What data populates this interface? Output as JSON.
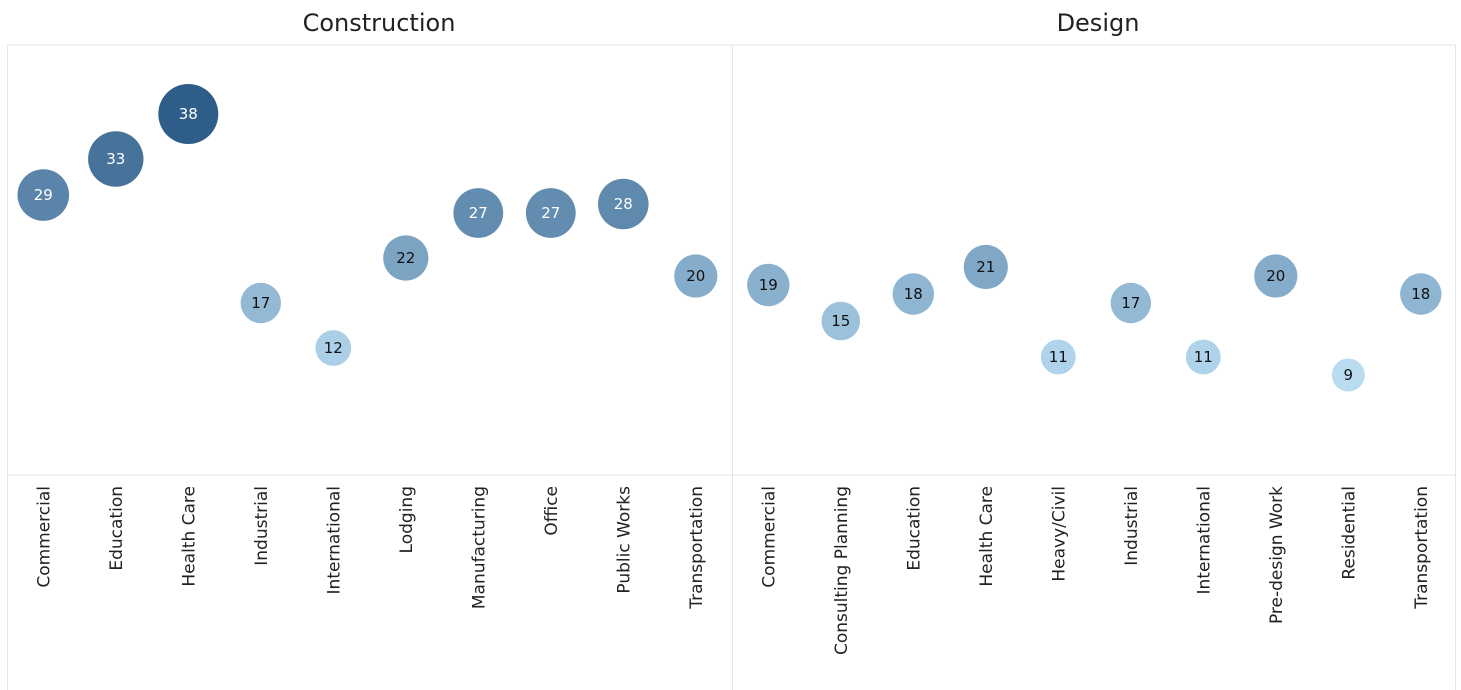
{
  "chart_data": {
    "type": "scatter",
    "encoding": "bubble",
    "color_scale": {
      "low": "#b9dcf1",
      "high": "#2f5d89"
    },
    "value_range": [
      9,
      38
    ],
    "grid": false,
    "panels": [
      {
        "title": "Construction",
        "categories": [
          "Commercial",
          "Education",
          "Health Care",
          "Industrial",
          "International",
          "Lodging",
          "Manufacturing",
          "Office",
          "Public Works",
          "Transportation"
        ],
        "values": [
          29,
          33,
          38,
          17,
          12,
          22,
          27,
          27,
          28,
          20
        ]
      },
      {
        "title": "Design",
        "categories": [
          "Commercial",
          "Consulting Planning",
          "Education",
          "Health Care",
          "Heavy/Civil",
          "Industrial",
          "International",
          "Pre-design Work",
          "Residential",
          "Transportation"
        ],
        "values": [
          19,
          15,
          18,
          21,
          11,
          17,
          11,
          20,
          9,
          18
        ]
      }
    ]
  }
}
